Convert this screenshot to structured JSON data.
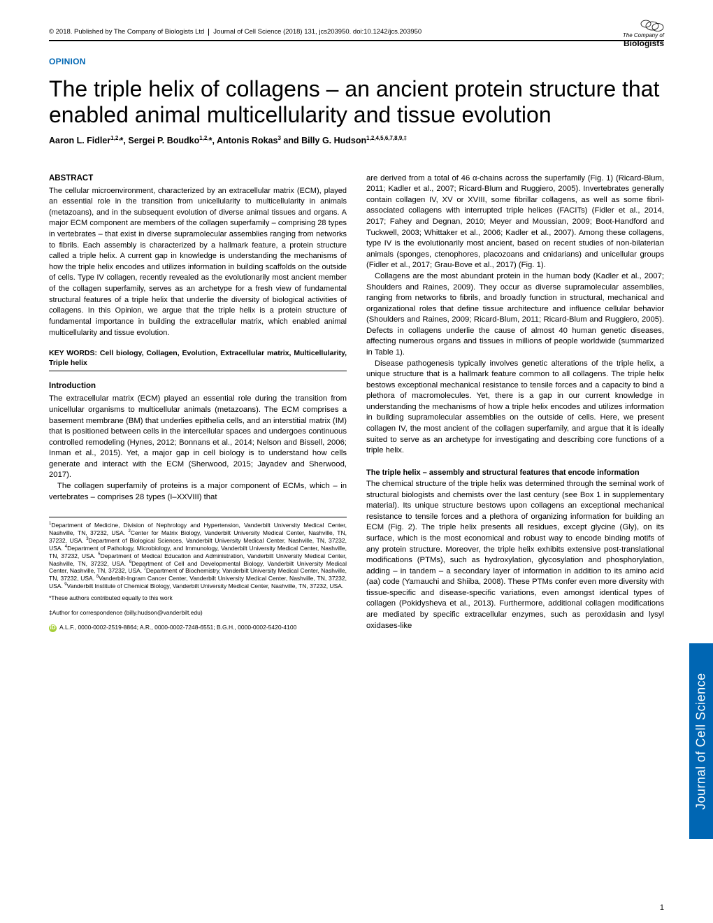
{
  "header": {
    "copyright": "© 2018. Published by The Company of Biologists Ltd",
    "citation": "Journal of Cell Science (2018) 131, jcs203950. doi:10.1242/jcs.203950",
    "publisher_prefix": "The Company of",
    "publisher_name": "Biologists"
  },
  "section_label": "OPINION",
  "title": "The triple helix of collagens – an ancient protein structure that enabled animal multicellularity and tissue evolution",
  "authors_html": "Aaron L. Fidler<sup>1,2,</sup>*, Sergei P. Boudko<sup>1,2,</sup>*, Antonis Rokas<sup>3</sup> and Billy G. Hudson<sup>1,2,4,5,6,7,8,9,‡</sup>",
  "abstract": {
    "heading": "ABSTRACT",
    "text": "The cellular microenvironment, characterized by an extracellular matrix (ECM), played an essential role in the transition from unicellularity to multicellularity in animals (metazoans), and in the subsequent evolution of diverse animal tissues and organs. A major ECM component are members of the collagen superfamily – comprising 28 types in vertebrates – that exist in diverse supramolecular assemblies ranging from networks to fibrils. Each assembly is characterized by a hallmark feature, a protein structure called a triple helix. A current gap in knowledge is understanding the mechanisms of how the triple helix encodes and utilizes information in building scaffolds on the outside of cells. Type IV collagen, recently revealed as the evolutionarily most ancient member of the collagen superfamily, serves as an archetype for a fresh view of fundamental structural features of a triple helix that underlie the diversity of biological activities of collagens. In this Opinion, we argue that the triple helix is a protein structure of fundamental importance in building the extracellular matrix, which enabled animal multicellularity and tissue evolution."
  },
  "keywords": {
    "label": "KEY WORDS:",
    "text": "Cell biology, Collagen, Evolution, Extracellular matrix, Multicellularity, Triple helix"
  },
  "intro": {
    "heading": "Introduction",
    "p1": "The extracellular matrix (ECM) played an essential role during the transition from unicellular organisms to multicellular animals (metazoans). The ECM comprises a basement membrane (BM) that underlies epithelia cells, and an interstitial matrix (IM) that is positioned between cells in the intercellular spaces and undergoes continuous controlled remodeling (Hynes, 2012; Bonnans et al., 2014; Nelson and Bissell, 2006; Inman et al., 2015). Yet, a major gap in cell biology is to understand how cells generate and interact with the ECM (Sherwood, 2015; Jayadev and Sherwood, 2017).",
    "p2": "The collagen superfamily of proteins is a major component of ECMs, which – in vertebrates – comprises 28 types (I–XXVIII) that"
  },
  "right": {
    "p1": "are derived from a total of 46 α-chains across the superfamily (Fig. 1) (Ricard-Blum, 2011; Kadler et al., 2007; Ricard-Blum and Ruggiero, 2005). Invertebrates generally contain collagen IV, XV or XVIII, some fibrillar collagens, as well as some fibril-associated collagens with interrupted triple helices (FACITs) (Fidler et al., 2014, 2017; Fahey and Degnan, 2010; Meyer and Moussian, 2009; Boot-Handford and Tuckwell, 2003; Whittaker et al., 2006; Kadler et al., 2007). Among these collagens, type IV is the evolutionarily most ancient, based on recent studies of non-bilaterian animals (sponges, ctenophores, placozoans and cnidarians) and unicellular groups (Fidler et al., 2017; Grau-Bove et al., 2017) (Fig. 1).",
    "p2": "Collagens are the most abundant protein in the human body (Kadler et al., 2007; Shoulders and Raines, 2009). They occur as diverse supramolecular assemblies, ranging from networks to fibrils, and broadly function in structural, mechanical and organizational roles that define tissue architecture and influence cellular behavior (Shoulders and Raines, 2009; Ricard-Blum, 2011; Ricard-Blum and Ruggiero, 2005). Defects in collagens underlie the cause of almost 40 human genetic diseases, affecting numerous organs and tissues in millions of people worldwide (summarized in Table 1).",
    "p3": "Disease pathogenesis typically involves genetic alterations of the triple helix, a unique structure that is a hallmark feature common to all collagens. The triple helix bestows exceptional mechanical resistance to tensile forces and a capacity to bind a plethora of macromolecules. Yet, there is a gap in our current knowledge in understanding the mechanisms of how a triple helix encodes and utilizes information in building supramolecular assemblies on the outside of cells. Here, we present collagen IV, the most ancient of the collagen superfamily, and argue that it is ideally suited to serve as an archetype for investigating and describing core functions of a triple helix.",
    "subheading": "The triple helix – assembly and structural features that encode information",
    "p4": "The chemical structure of the triple helix was determined through the seminal work of structural biologists and chemists over the last century (see Box 1 in supplementary material). Its unique structure bestows upon collagens an exceptional mechanical resistance to tensile forces and a plethora of organizing information for building an ECM (Fig. 2). The triple helix presents all residues, except glycine (Gly), on its surface, which is the most economical and robust way to encode binding motifs of any protein structure. Moreover, the triple helix exhibits extensive post-translational modifications (PTMs), such as hydroxylation, glycosylation and phosphorylation, adding – in tandem – a secondary layer of information in addition to its amino acid (aa) code (Yamauchi and Shiiba, 2008). These PTMs confer even more diversity with tissue-specific and disease-specific variations, even amongst identical types of collagen (Pokidysheva et al., 2013). Furthermore, additional collagen modifications are mediated by specific extracellular enzymes, such as peroxidasin and lysyl oxidases-like"
  },
  "affiliations": "<sup>1</sup>Department of Medicine, Division of Nephrology and Hypertension, Vanderbilt University Medical Center, Nashville, TN, 37232, USA. <sup>2</sup>Center for Matrix Biology, Vanderbilt University Medical Center, Nashville, TN, 37232, USA. <sup>3</sup>Department of Biological Sciences, Vanderbilt University Medical Center, Nashville, TN, 37232, USA. <sup>4</sup>Department of Pathology, Microbiology, and Immunology, Vanderbilt University Medical Center, Nashville, TN, 37232, USA. <sup>5</sup>Department of Medical Education and Administration, Vanderbilt University Medical Center, Nashville, TN, 37232, USA. <sup>6</sup>Department of Cell and Developmental Biology, Vanderbilt University Medical Center, Nashville, TN, 37232, USA. <sup>7</sup>Department of Biochemistry, Vanderbilt University Medical Center, Nashville, TN, 37232, USA. <sup>8</sup>Vanderbilt-Ingram Cancer Center, Vanderbilt University Medical Center, Nashville, TN, 37232, USA. <sup>9</sup>Vanderbilt Institute of Chemical Biology, Vanderbilt University Medical Center, Nashville, TN, 37232, USA.",
  "equal_contrib": "*These authors contributed equally to this work",
  "correspondence": "‡Author for correspondence (billy.hudson@vanderbilt.edu)",
  "orcid": "A.L.F., 0000-0002-2519-8864; A.R., 0000-0002-7248-6551; B.G.H., 0000-0002-5420-4100",
  "side_tab": "Journal of Cell Science",
  "page_number": "1",
  "colors": {
    "accent_blue": "#0066b3",
    "orcid_green": "#a6ce39"
  }
}
